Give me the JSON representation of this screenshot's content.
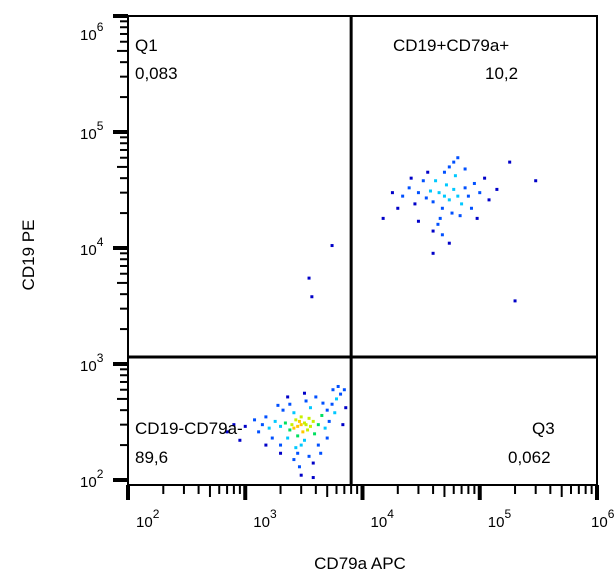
{
  "chart_data": {
    "type": "scatter",
    "xlabel": "CD79a APC",
    "ylabel": "CD19 PE",
    "xscale": "log",
    "yscale": "log",
    "xlim": [
      100,
      1000000
    ],
    "ylim": [
      100,
      1000000
    ],
    "x_ticks": [
      {
        "base": "10",
        "exp": "2"
      },
      {
        "base": "10",
        "exp": "3"
      },
      {
        "base": "10",
        "exp": "4"
      },
      {
        "base": "10",
        "exp": "5"
      },
      {
        "base": "10",
        "exp": "6"
      }
    ],
    "y_ticks": [
      {
        "base": "10",
        "exp": "2"
      },
      {
        "base": "10",
        "exp": "3"
      },
      {
        "base": "10",
        "exp": "4"
      },
      {
        "base": "10",
        "exp": "5"
      },
      {
        "base": "10",
        "exp": "6"
      }
    ],
    "gates": {
      "x": 8000,
      "y": 1150
    },
    "quadrants": [
      {
        "name": "Q1",
        "value": "0,083"
      },
      {
        "name": "CD19+CD79a+",
        "value": "10,2"
      },
      {
        "name": "CD19-CD79a-",
        "value": "89,6"
      },
      {
        "name": "Q3",
        "value": "0,062"
      }
    ],
    "color_scale": [
      "#0000c8",
      "#0050ff",
      "#00c8ff",
      "#00e060",
      "#c8f000",
      "#ffc800",
      "#ff3000"
    ],
    "points": [
      [
        3000,
        300
      ],
      [
        2800,
        290
      ],
      [
        3200,
        310
      ],
      [
        2600,
        280
      ],
      [
        3400,
        270
      ],
      [
        2900,
        320
      ],
      [
        3100,
        260
      ],
      [
        2700,
        330
      ],
      [
        3300,
        300
      ],
      [
        2500,
        300
      ],
      [
        3600,
        290
      ],
      [
        2400,
        270
      ],
      [
        3000,
        350
      ],
      [
        2800,
        240
      ],
      [
        3500,
        340
      ],
      [
        2200,
        310
      ],
      [
        3800,
        320
      ],
      [
        2000,
        290
      ],
      [
        4200,
        300
      ],
      [
        2600,
        380
      ],
      [
        3200,
        220
      ],
      [
        1800,
        320
      ],
      [
        4500,
        360
      ],
      [
        2300,
        230
      ],
      [
        3900,
        250
      ],
      [
        1600,
        280
      ],
      [
        5000,
        400
      ],
      [
        2100,
        400
      ],
      [
        3000,
        200
      ],
      [
        4800,
        280
      ],
      [
        1500,
        350
      ],
      [
        2700,
        190
      ],
      [
        5500,
        450
      ],
      [
        1700,
        230
      ],
      [
        3600,
        420
      ],
      [
        6000,
        500
      ],
      [
        2400,
        450
      ],
      [
        4200,
        200
      ],
      [
        1400,
        300
      ],
      [
        5200,
        320
      ],
      [
        3300,
        480
      ],
      [
        2000,
        200
      ],
      [
        6500,
        550
      ],
      [
        1900,
        440
      ],
      [
        4600,
        460
      ],
      [
        2800,
        170
      ],
      [
        3500,
        160
      ],
      [
        7000,
        600
      ],
      [
        5800,
        380
      ],
      [
        1300,
        260
      ],
      [
        2300,
        520
      ],
      [
        4000,
        520
      ],
      [
        6200,
        640
      ],
      [
        1500,
        200
      ],
      [
        2600,
        150
      ],
      [
        5000,
        230
      ],
      [
        3200,
        560
      ],
      [
        4400,
        170
      ],
      [
        7200,
        420
      ],
      [
        1200,
        330
      ],
      [
        6800,
        300
      ],
      [
        2000,
        170
      ],
      [
        3800,
        140
      ],
      [
        5600,
        600
      ],
      [
        2900,
        130
      ],
      [
        1000,
        290
      ],
      [
        800,
        300
      ],
      [
        700,
        260
      ],
      [
        900,
        220
      ],
      [
        3000,
        110
      ],
      [
        3800,
        105
      ],
      [
        50000,
        28000
      ],
      [
        45000,
        30000
      ],
      [
        55000,
        26000
      ],
      [
        60000,
        32000
      ],
      [
        40000,
        25000
      ],
      [
        48000,
        22000
      ],
      [
        52000,
        35000
      ],
      [
        65000,
        28000
      ],
      [
        38000,
        31000
      ],
      [
        70000,
        24000
      ],
      [
        42000,
        38000
      ],
      [
        58000,
        20000
      ],
      [
        35000,
        27000
      ],
      [
        75000,
        33000
      ],
      [
        46000,
        18000
      ],
      [
        62000,
        42000
      ],
      [
        30000,
        30000
      ],
      [
        80000,
        28000
      ],
      [
        50000,
        45000
      ],
      [
        28000,
        24000
      ],
      [
        44000,
        16000
      ],
      [
        90000,
        36000
      ],
      [
        33000,
        38000
      ],
      [
        68000,
        19000
      ],
      [
        55000,
        50000
      ],
      [
        25000,
        33000
      ],
      [
        85000,
        22000
      ],
      [
        40000,
        14000
      ],
      [
        100000,
        30000
      ],
      [
        22000,
        28000
      ],
      [
        60000,
        55000
      ],
      [
        36000,
        45000
      ],
      [
        120000,
        26000
      ],
      [
        48000,
        13000
      ],
      [
        75000,
        48000
      ],
      [
        20000,
        22000
      ],
      [
        110000,
        40000
      ],
      [
        30000,
        17000
      ],
      [
        95000,
        18000
      ],
      [
        65000,
        60000
      ],
      [
        26000,
        40000
      ],
      [
        140000,
        32000
      ],
      [
        55000,
        11000
      ],
      [
        18000,
        30000
      ],
      [
        40000,
        9000
      ],
      [
        15000,
        18000
      ],
      [
        180000,
        55000
      ],
      [
        300000,
        38000
      ],
      [
        200000,
        3500
      ],
      [
        5500,
        10500
      ],
      [
        3500,
        5500
      ],
      [
        3700,
        3800
      ]
    ]
  }
}
